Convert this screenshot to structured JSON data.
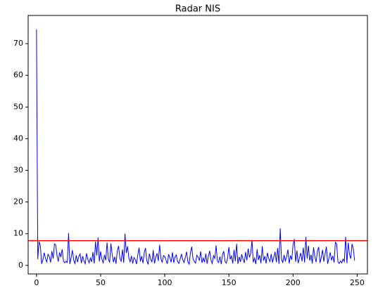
{
  "chart_data": {
    "type": "line",
    "title": "Radar NIS",
    "x": [
      0,
      1,
      2,
      3,
      4,
      5,
      6,
      7,
      8,
      9,
      10,
      11,
      12,
      13,
      14,
      15,
      16,
      17,
      18,
      19,
      20,
      21,
      22,
      23,
      24,
      25,
      26,
      27,
      28,
      29,
      30,
      31,
      32,
      33,
      34,
      35,
      36,
      37,
      38,
      39,
      40,
      41,
      42,
      43,
      44,
      45,
      46,
      47,
      48,
      49,
      50,
      51,
      52,
      53,
      54,
      55,
      56,
      57,
      58,
      59,
      60,
      61,
      62,
      63,
      64,
      65,
      66,
      67,
      68,
      69,
      70,
      71,
      72,
      73,
      74,
      75,
      76,
      77,
      78,
      79,
      80,
      81,
      82,
      83,
      84,
      85,
      86,
      87,
      88,
      89,
      90,
      91,
      92,
      93,
      94,
      95,
      96,
      97,
      98,
      99,
      100,
      101,
      102,
      103,
      104,
      105,
      106,
      107,
      108,
      109,
      110,
      111,
      112,
      113,
      114,
      115,
      116,
      117,
      118,
      119,
      120,
      121,
      122,
      123,
      124,
      125,
      126,
      127,
      128,
      129,
      130,
      131,
      132,
      133,
      134,
      135,
      136,
      137,
      138,
      139,
      140,
      141,
      142,
      143,
      144,
      145,
      146,
      147,
      148,
      149,
      150,
      151,
      152,
      153,
      154,
      155,
      156,
      157,
      158,
      159,
      160,
      161,
      162,
      163,
      164,
      165,
      166,
      167,
      168,
      169,
      170,
      171,
      172,
      173,
      174,
      175,
      176,
      177,
      178,
      179,
      180,
      181,
      182,
      183,
      184,
      185,
      186,
      187,
      188,
      189,
      190,
      191,
      192,
      193,
      194,
      195,
      196,
      197,
      198,
      199,
      200,
      201,
      202,
      203,
      204,
      205,
      206,
      207,
      208,
      209,
      210,
      211,
      212,
      213,
      214,
      215,
      216,
      217,
      218,
      219,
      220,
      221,
      222,
      223,
      224,
      225,
      226,
      227,
      228,
      229,
      230,
      231,
      232,
      233,
      234,
      235,
      236,
      237,
      238,
      239,
      240,
      241,
      242,
      243,
      244,
      245,
      246,
      247,
      248
    ],
    "series": [
      {
        "color": "#0000ff",
        "values": [
          74.5,
          2.0,
          7.5,
          6.2,
          0.5,
          1.8,
          4.0,
          2.2,
          1.1,
          3.5,
          2.8,
          0.9,
          4.5,
          2.1,
          6.8,
          6.5,
          3.0,
          1.2,
          4.1,
          2.6,
          5.1,
          1.5,
          0.8,
          1.3,
          0.9,
          10.2,
          0.4,
          2.5,
          4.8,
          1.7,
          0.6,
          3.2,
          1.0,
          2.8,
          3.6,
          0.7,
          2.9,
          1.4,
          0.5,
          3.8,
          1.9,
          0.8,
          2.3,
          1.1,
          4.2,
          0.6,
          7.5,
          3.1,
          8.8,
          1.2,
          4.4,
          2.0,
          0.7,
          3.3,
          1.6,
          7.2,
          2.1,
          0.9,
          6.9,
          3.5,
          1.0,
          2.7,
          0.5,
          4.6,
          6.1,
          2.2,
          1.3,
          5.0,
          0.8,
          10.0,
          3.9,
          6.0,
          2.4,
          1.1,
          3.0,
          0.6,
          2.5,
          1.8,
          0.4,
          3.4,
          5.6,
          1.2,
          2.9,
          0.7,
          4.0,
          5.5,
          1.5,
          0.3,
          3.7,
          2.0,
          1.0,
          4.8,
          0.6,
          2.6,
          3.8,
          1.4,
          6.5,
          2.2,
          0.9,
          3.1,
          2.8,
          1.6,
          0.5,
          3.5,
          2.4,
          1.0,
          4.1,
          0.8,
          2.7,
          3.3,
          1.2,
          0.6,
          2.0,
          3.6,
          1.8,
          0.9,
          2.5,
          4.3,
          1.1,
          0.4,
          3.9,
          5.9,
          2.1,
          1.3,
          0.7,
          3.2,
          2.6,
          1.5,
          4.4,
          0.8,
          2.3,
          1.0,
          3.7,
          0.5,
          2.9,
          4.6,
          1.7,
          0.6,
          3.1,
          2.2,
          6.3,
          1.4,
          0.9,
          2.8,
          0.4,
          3.4,
          4.5,
          1.2,
          0.7,
          2.4,
          5.8,
          1.9,
          3.0,
          0.6,
          4.9,
          1.3,
          6.8,
          0.5,
          2.7,
          1.1,
          3.5,
          2.0,
          0.8,
          4.2,
          1.6,
          5.3,
          2.5,
          3.8,
          8.0,
          1.0,
          2.3,
          0.4,
          5.1,
          1.7,
          3.2,
          0.7,
          6.0,
          1.5,
          2.9,
          0.6,
          4.0,
          2.2,
          1.2,
          3.6,
          0.9,
          2.6,
          4.3,
          1.0,
          5.5,
          0.5,
          11.7,
          2.0,
          0.8,
          3.3,
          1.4,
          2.7,
          5.0,
          0.6,
          3.1,
          1.8,
          6.5,
          8.3,
          1.1,
          4.7,
          0.7,
          2.4,
          3.9,
          1.3,
          5.6,
          0.9,
          9.0,
          2.1,
          6.2,
          1.5,
          3.4,
          0.6,
          5.7,
          2.8,
          1.0,
          4.5,
          5.8,
          0.8,
          2.5,
          4.9,
          1.2,
          3.6,
          5.9,
          0.5,
          2.3,
          4.1,
          1.6,
          3.0,
          0.9,
          7.3,
          6.8,
          1.1,
          0.6,
          1.4,
          0.8,
          2.0,
          1.2,
          9.0,
          0.7,
          7.2,
          3.5,
          2.1,
          6.8,
          5.2,
          1.5
        ]
      }
    ],
    "threshold": {
      "value": 7.815,
      "color": "#ff0000"
    },
    "xlim": [
      -6.5,
      258
    ],
    "ylim": [
      -2.7,
      78.9
    ],
    "xticks": [
      0,
      50,
      100,
      150,
      200,
      250
    ],
    "yticks": [
      0,
      10,
      20,
      30,
      40,
      50,
      60,
      70
    ]
  }
}
